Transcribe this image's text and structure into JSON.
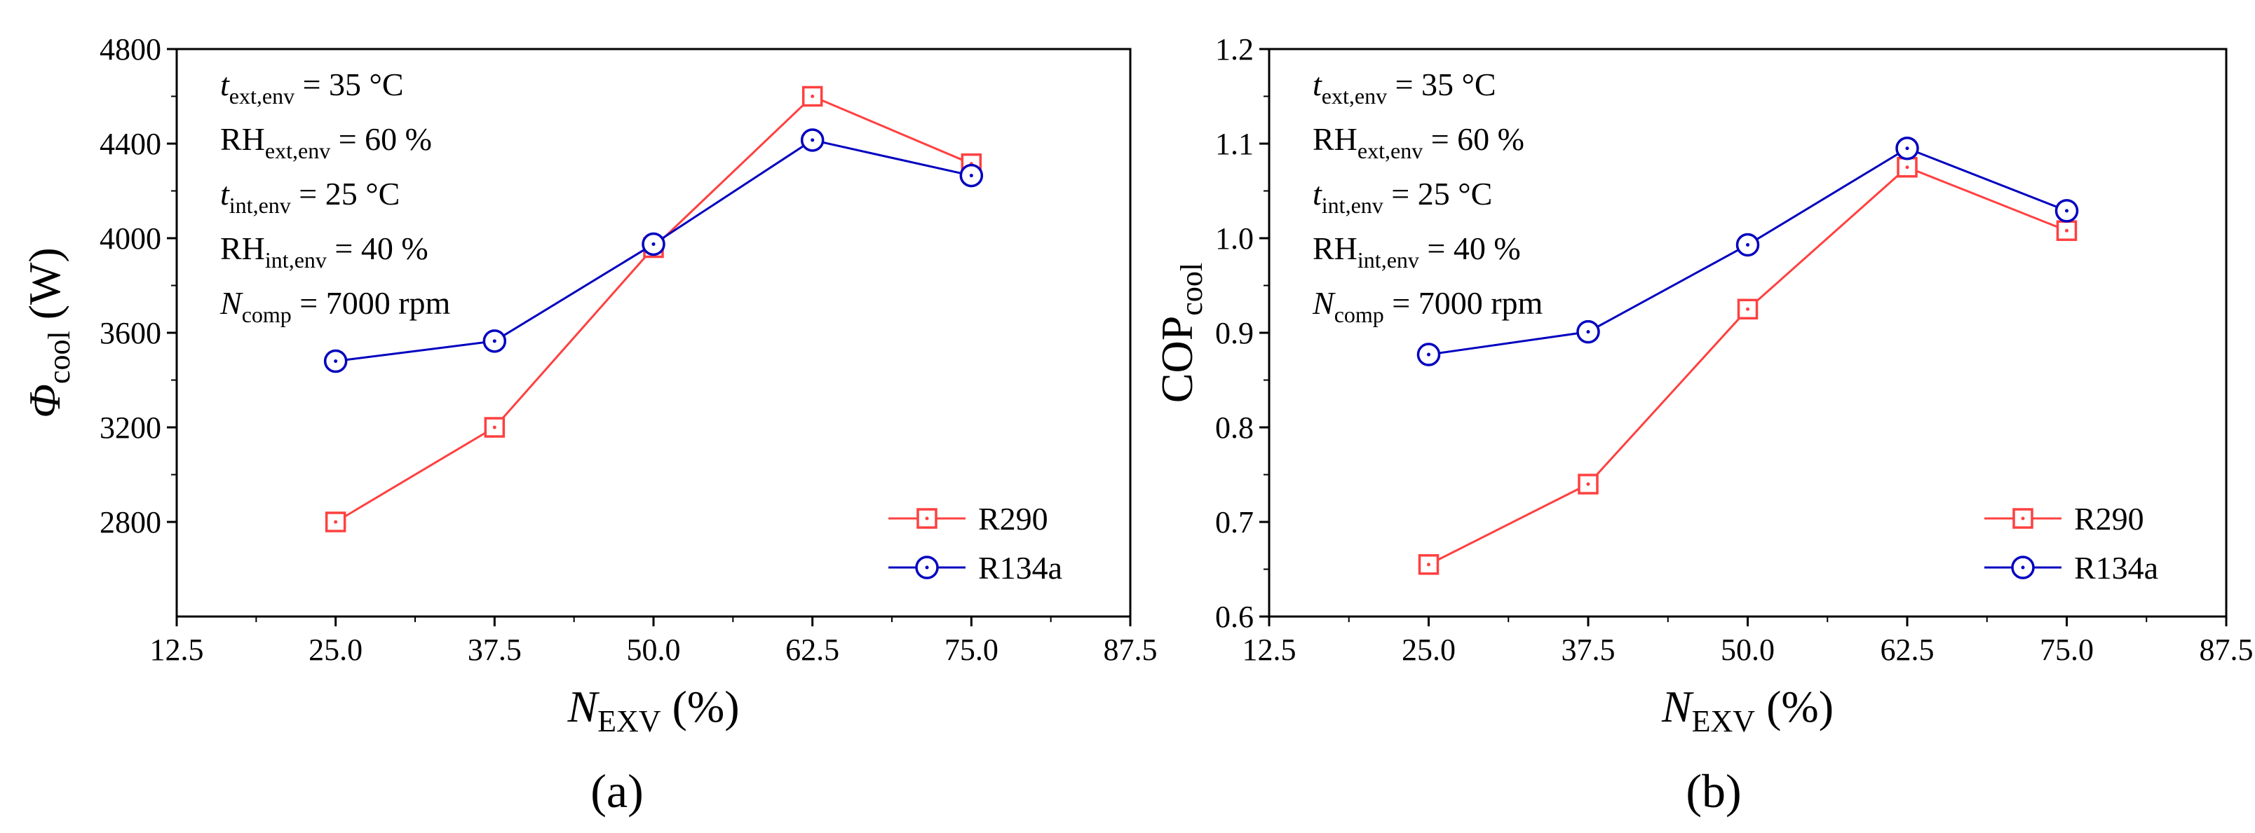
{
  "colors": {
    "R290": "#ff4040",
    "R134a": "#0000c0",
    "axis": "#000000",
    "background": "#ffffff"
  },
  "chart_data": [
    {
      "type": "line",
      "panel_label": "(a)",
      "xlabel": {
        "main": "N",
        "sub": "EXV",
        "unit": " (%)"
      },
      "ylabel": {
        "main": "Φ",
        "sub": "cool",
        "unit": " (W)"
      },
      "xlim": [
        12.5,
        87.5
      ],
      "ylim": [
        2400,
        4800
      ],
      "xticks": [
        "12.5",
        "25.0",
        "37.5",
        "50.0",
        "62.5",
        "75.0",
        "87.5"
      ],
      "yticks": [
        "2800",
        "3200",
        "3600",
        "4000",
        "4400",
        "4800"
      ],
      "x": [
        25.0,
        37.5,
        50.0,
        62.5,
        75.0
      ],
      "series": [
        {
          "name": "R290",
          "marker": "square",
          "values": [
            2800,
            3200,
            3960,
            4600,
            4315
          ]
        },
        {
          "name": "R134a",
          "marker": "circle",
          "values": [
            3480,
            3565,
            3975,
            4415,
            4265
          ]
        }
      ],
      "legend_position": "bottom-right",
      "annotations": [
        {
          "main": "t",
          "sub": "ext,env",
          "rest": " = 35 °C"
        },
        {
          "main": "RH",
          "sub": "ext,env",
          "rest": " = 60 %"
        },
        {
          "main": "t",
          "sub": "int,env",
          "rest": " = 25 °C"
        },
        {
          "main": "RH",
          "sub": "int,env",
          "rest": " = 40 %"
        },
        {
          "main": "N",
          "sub": "comp",
          "rest": " = 7000 rpm"
        }
      ]
    },
    {
      "type": "line",
      "panel_label": "(b)",
      "xlabel": {
        "main": "N",
        "sub": "EXV",
        "unit": " (%)"
      },
      "ylabel": {
        "main": "COP",
        "sub": "cool",
        "unit": ""
      },
      "xlim": [
        12.5,
        87.5
      ],
      "ylim": [
        0.6,
        1.2
      ],
      "xticks": [
        "12.5",
        "25.0",
        "37.5",
        "50.0",
        "62.5",
        "75.0",
        "87.5"
      ],
      "yticks": [
        "0.6",
        "0.7",
        "0.8",
        "0.9",
        "1.0",
        "1.1",
        "1.2"
      ],
      "x": [
        25.0,
        37.5,
        50.0,
        62.5,
        75.0
      ],
      "series": [
        {
          "name": "R290",
          "marker": "square",
          "values": [
            0.655,
            0.74,
            0.925,
            1.075,
            1.008
          ]
        },
        {
          "name": "R134a",
          "marker": "circle",
          "values": [
            0.877,
            0.901,
            0.993,
            1.095,
            1.029
          ]
        }
      ],
      "legend_position": "bottom-right",
      "annotations": [
        {
          "main": "t",
          "sub": "ext,env",
          "rest": " = 35 °C"
        },
        {
          "main": "RH",
          "sub": "ext,env",
          "rest": " = 60 %"
        },
        {
          "main": "t",
          "sub": "int,env",
          "rest": " = 25 °C"
        },
        {
          "main": "RH",
          "sub": "int,env",
          "rest": " = 40 %"
        },
        {
          "main": "N",
          "sub": "comp",
          "rest": " = 7000 rpm"
        }
      ]
    }
  ]
}
